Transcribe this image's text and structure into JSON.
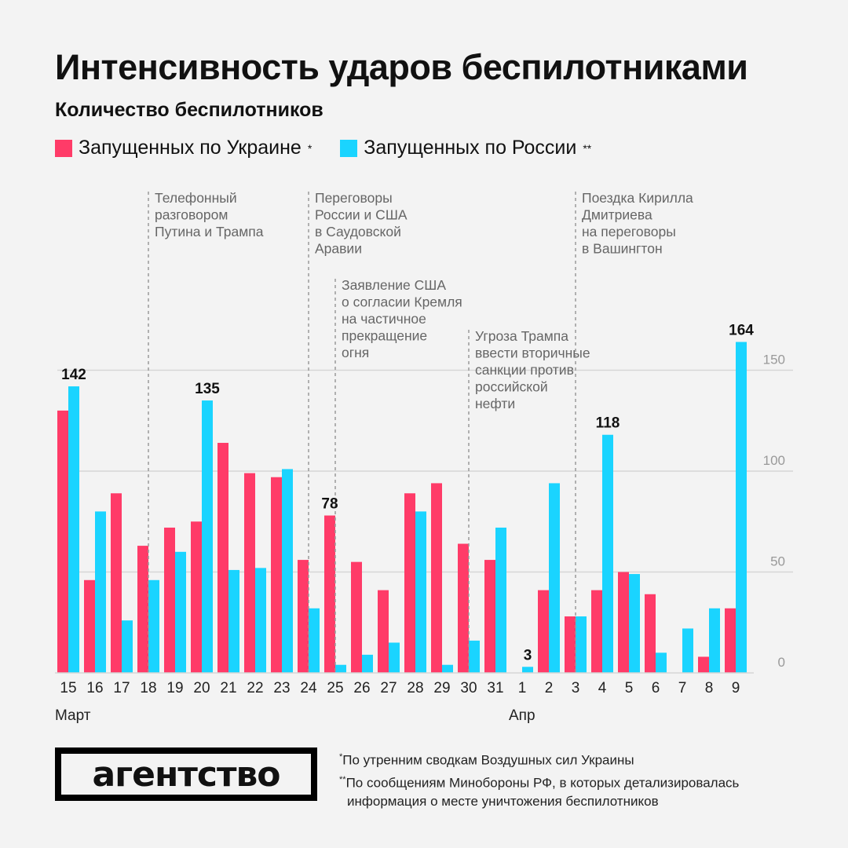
{
  "title": "Интенсивность ударов беспилотниками",
  "subtitle": "Количество беспилотников",
  "legend": [
    {
      "label": "Запущенных по Украине",
      "mark": "*",
      "color": "#ff3b68"
    },
    {
      "label": "Запущенных по России",
      "mark": "**",
      "color": "#1ad4ff"
    }
  ],
  "footnotes": [
    {
      "mark": "*",
      "text": "По утренним сводкам Воздушных сил Украины"
    },
    {
      "mark": "**",
      "text": "По сообщениям Минобороны РФ, в которых детализировалась"
    },
    {
      "mark": "",
      "text": "информация о месте уничтожения беспилотников"
    }
  ],
  "logo": "агентство",
  "chart_data": {
    "type": "bar",
    "categories": [
      "15",
      "16",
      "17",
      "18",
      "19",
      "20",
      "21",
      "22",
      "23",
      "24",
      "25",
      "26",
      "27",
      "28",
      "29",
      "30",
      "31",
      "1",
      "2",
      "3",
      "4",
      "5",
      "6",
      "7",
      "8",
      "9"
    ],
    "month_labels": [
      {
        "label": "Март",
        "at": "15"
      },
      {
        "label": "Апр",
        "at": "1"
      }
    ],
    "series": [
      {
        "name": "Запущенных по Украине",
        "color": "#ff3b68",
        "values": [
          130,
          46,
          89,
          63,
          72,
          75,
          114,
          99,
          97,
          56,
          78,
          55,
          41,
          89,
          94,
          64,
          56,
          0,
          41,
          28,
          41,
          50,
          39,
          0,
          8,
          32
        ]
      },
      {
        "name": "Запущенных по России",
        "color": "#1ad4ff",
        "values": [
          142,
          80,
          26,
          46,
          60,
          135,
          51,
          52,
          101,
          32,
          4,
          9,
          15,
          80,
          4,
          16,
          72,
          3,
          94,
          28,
          118,
          49,
          10,
          22,
          32,
          164
        ]
      }
    ],
    "data_labels": [
      {
        "series": 1,
        "category": "15",
        "text": "142"
      },
      {
        "series": 1,
        "category": "20",
        "text": "135"
      },
      {
        "series": 0,
        "category": "25",
        "text": "78"
      },
      {
        "series": 1,
        "category": "1",
        "text": "3"
      },
      {
        "series": 1,
        "category": "4",
        "text": "118"
      },
      {
        "series": 1,
        "category": "9",
        "text": "164"
      }
    ],
    "yticks": [
      0,
      50,
      100,
      150
    ],
    "ylim": [
      0,
      170
    ],
    "y_axis_side": "right",
    "grid": true,
    "annotations": [
      {
        "category": "18",
        "lines": [
          "Телефонный",
          "разговором",
          "Путина и Трампа"
        ]
      },
      {
        "category": "24",
        "lines": [
          "Переговоры",
          "России и США",
          "в Саудовской",
          "Аравии"
        ]
      },
      {
        "category": "25",
        "lines": [
          "Заявление США",
          "о согласии Кремля",
          "на частичное",
          "прекращение",
          "огня"
        ]
      },
      {
        "category": "30",
        "lines": [
          "Угроза Трампа",
          "ввести вторичные",
          "санкции против",
          "российской",
          "нефти"
        ]
      },
      {
        "category": "3",
        "lines": [
          "Поездка Кирилла",
          "Дмитриева",
          "на переговоры",
          "в Вашингтон"
        ]
      }
    ]
  }
}
